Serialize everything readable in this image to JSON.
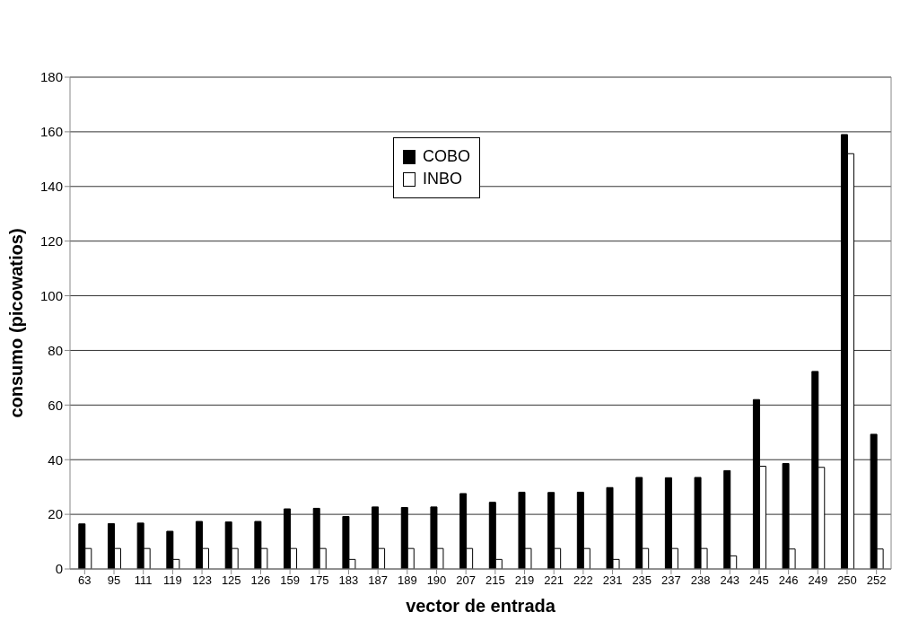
{
  "chart_data": {
    "type": "bar",
    "xlabel": "vector de entrada",
    "ylabel": "consumo (picowatios)",
    "categories": [
      "63",
      "95",
      "111",
      "119",
      "123",
      "125",
      "126",
      "159",
      "175",
      "183",
      "187",
      "189",
      "190",
      "207",
      "215",
      "219",
      "221",
      "222",
      "231",
      "235",
      "237",
      "238",
      "243",
      "245",
      "246",
      "249",
      "250",
      "252"
    ],
    "series": [
      {
        "name": "COBO",
        "color": "#000000",
        "values": [
          16.5,
          16.6,
          16.8,
          13.8,
          17.4,
          17.2,
          17.4,
          22,
          22.2,
          19.2,
          22.7,
          22.5,
          22.7,
          27.6,
          24.4,
          28.1,
          28,
          28.1,
          29.8,
          33.5,
          33.4,
          33.5,
          36,
          62,
          38.6,
          72.3,
          159,
          49.3
        ]
      },
      {
        "name": "INBO",
        "color": "#ffffff",
        "values": [
          7.5,
          7.5,
          7.5,
          3.5,
          7.5,
          7.5,
          7.5,
          7.5,
          7.5,
          3.5,
          7.5,
          7.5,
          7.5,
          7.5,
          3.5,
          7.5,
          7.5,
          7.5,
          3.5,
          7.5,
          7.5,
          7.5,
          4.8,
          37.6,
          7.3,
          37.2,
          152,
          7.3
        ]
      }
    ],
    "ylim": [
      0,
      180
    ],
    "yticks": [
      0,
      20,
      40,
      60,
      80,
      100,
      120,
      140,
      160,
      180
    ],
    "grid": "y",
    "legend": "top"
  }
}
